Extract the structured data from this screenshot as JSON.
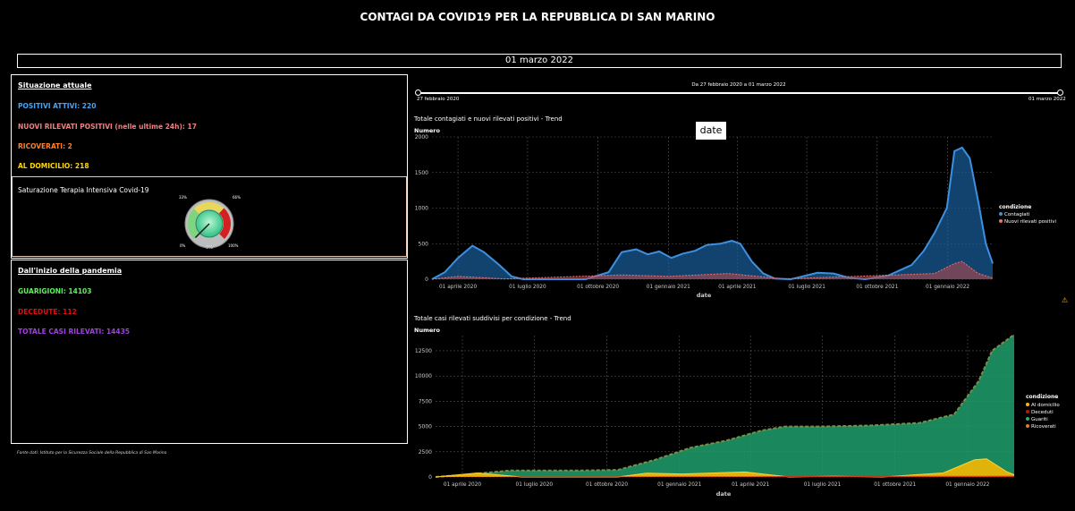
{
  "title": "CONTAGI DA COVID19 PER LA REPUBBLICA DI SAN MARINO",
  "date_label": "01 marzo 2022",
  "current": {
    "heading": "Situazione attuale",
    "positivi": "POSITIVI ATTIVI: 220",
    "nuovi": "NUOVI RILEVATI POSITIVI (nelle ultime 24h): 17",
    "ricoverati": "RICOVERATI: 2",
    "domicilio": "AL DOMICILIO: 218",
    "gauge_title": "Saturazione Terapia Intensiva Covid-19",
    "gauge_value": "0%",
    "gauge_value_num": 0,
    "gauge_ticks": [
      "0%",
      "33%",
      "66%",
      "100%"
    ]
  },
  "since": {
    "heading": "Dall'inizio della pandemia",
    "guarigioni": "GUARIGIONI: 14103",
    "decedute": "DECEDUTE: 112",
    "totale": "TOTALE CASI RILEVATI: 14435"
  },
  "source_note": "Fonte dati: Istituto per la Sicurezza Sociale della Repubblica di San Marino",
  "slider": {
    "caption": "Da 27 febbraio 2020 a 01 marzo 2022",
    "start_label": "27 febbraio 2020",
    "end_label": "01 marzo 2022"
  },
  "tooltip": "date",
  "colors": {
    "positivi": "#4aa3f0",
    "nuovi": "#f08080",
    "ricoverati": "#ff7f2a",
    "domicilio": "#ffd900",
    "guarigioni": "#5df25d",
    "decedute": "#e01010",
    "totale": "#a040e0",
    "contagiati_line": "#3d8fdf",
    "guariti_fill": "#27b07a",
    "ricoverati_line": "#e08020",
    "domicilio_fill": "#f5b800",
    "warning": "#f0b400"
  },
  "chart_data": [
    {
      "type": "area",
      "title": "Totale contagiati e nuovi rilevati positivi - Trend",
      "ylabel": "Numero",
      "xlabel": "date",
      "ylim": [
        0,
        2000
      ],
      "yticks": [
        "0",
        "500",
        "1000",
        "1500",
        "2000"
      ],
      "xticks": [
        "01 aprile 2020",
        "01 luglio 2020",
        "01 ottobre 2020",
        "01 gennaio 2021",
        "01 aprile 2021",
        "01 luglio 2021",
        "01 ottobre 2021",
        "01 gennaio 2022"
      ],
      "legend_title": "condizione",
      "legend_position": "right",
      "series": [
        {
          "name": "Contagiati",
          "x": [
            "2020-02-27",
            "2020-03-15",
            "2020-04-01",
            "2020-04-20",
            "2020-05-05",
            "2020-05-25",
            "2020-06-10",
            "2020-06-25",
            "2020-09-15",
            "2020-10-15",
            "2020-11-01",
            "2020-11-20",
            "2020-12-05",
            "2020-12-20",
            "2021-01-05",
            "2021-01-20",
            "2021-02-05",
            "2021-02-20",
            "2021-03-10",
            "2021-03-25",
            "2021-04-05",
            "2021-04-20",
            "2021-05-05",
            "2021-05-20",
            "2021-06-10",
            "2021-07-15",
            "2021-08-05",
            "2021-08-25",
            "2021-09-15",
            "2021-10-15",
            "2021-11-15",
            "2021-12-01",
            "2021-12-15",
            "2021-12-31",
            "2022-01-10",
            "2022-01-20",
            "2022-01-30",
            "2022-02-10",
            "2022-02-20",
            "2022-03-01"
          ],
          "values": [
            0,
            100,
            300,
            470,
            380,
            200,
            40,
            0,
            0,
            100,
            380,
            420,
            350,
            390,
            300,
            360,
            400,
            480,
            500,
            540,
            500,
            250,
            80,
            10,
            0,
            90,
            80,
            20,
            0,
            50,
            200,
            400,
            650,
            1000,
            1800,
            1850,
            1700,
            1100,
            500,
            220
          ]
        },
        {
          "name": "Nuovi rilevati positivi",
          "x": [
            "2020-02-27",
            "2020-04-01",
            "2020-06-01",
            "2020-11-01",
            "2021-01-01",
            "2021-03-20",
            "2021-06-01",
            "2021-12-15",
            "2022-01-10",
            "2022-01-20",
            "2022-02-10",
            "2022-03-01"
          ],
          "values": [
            0,
            40,
            5,
            60,
            40,
            80,
            5,
            80,
            220,
            250,
            80,
            17
          ]
        }
      ]
    },
    {
      "type": "area",
      "title": "Totale casi rilevati suddivisi per condizione - Trend",
      "ylabel": "Numero",
      "xlabel": "date",
      "ylim": [
        0,
        14000
      ],
      "yticks": [
        "0",
        "2500",
        "5000",
        "7500",
        "10000",
        "12500"
      ],
      "xticks": [
        "01 aprile 2020",
        "01 luglio 2020",
        "01 ottobre 2020",
        "01 gennaio 2021",
        "01 aprile 2021",
        "01 luglio 2021",
        "01 ottobre 2021",
        "01 gennaio 2022"
      ],
      "legend_title": "condizione",
      "legend_position": "right",
      "series": [
        {
          "name": "Al domicilio",
          "x": [
            "2020-02-27",
            "2020-04-20",
            "2020-06-15",
            "2020-10-15",
            "2020-11-20",
            "2021-01-05",
            "2021-03-25",
            "2021-05-20",
            "2021-07-15",
            "2021-09-15",
            "2021-12-01",
            "2022-01-10",
            "2022-01-25",
            "2022-02-20",
            "2022-03-01"
          ],
          "values": [
            0,
            400,
            0,
            0,
            380,
            300,
            500,
            0,
            80,
            0,
            400,
            1700,
            1800,
            500,
            218
          ]
        },
        {
          "name": "Deceduti",
          "x": [
            "2020-02-27",
            "2020-06-01",
            "2021-05-01",
            "2022-03-01"
          ],
          "values": [
            0,
            42,
            90,
            112
          ]
        },
        {
          "name": "Guariti",
          "x": [
            "2020-02-27",
            "2020-04-15",
            "2020-06-01",
            "2020-09-01",
            "2020-10-15",
            "2020-12-01",
            "2021-01-15",
            "2021-03-01",
            "2021-04-15",
            "2021-05-15",
            "2021-07-01",
            "2021-09-01",
            "2021-11-01",
            "2021-12-15",
            "2022-01-15",
            "2022-02-01",
            "2022-03-01"
          ],
          "values": [
            0,
            300,
            650,
            650,
            700,
            1700,
            2900,
            3600,
            4600,
            5000,
            5000,
            5100,
            5350,
            6200,
            9500,
            12500,
            14103
          ]
        },
        {
          "name": "Ricoverati",
          "x": [
            "2020-02-27",
            "2020-04-15",
            "2020-06-01",
            "2020-11-20",
            "2021-03-25",
            "2021-05-20",
            "2022-01-20",
            "2022-03-01"
          ],
          "values": [
            0,
            60,
            5,
            40,
            50,
            5,
            30,
            2
          ]
        }
      ]
    }
  ]
}
